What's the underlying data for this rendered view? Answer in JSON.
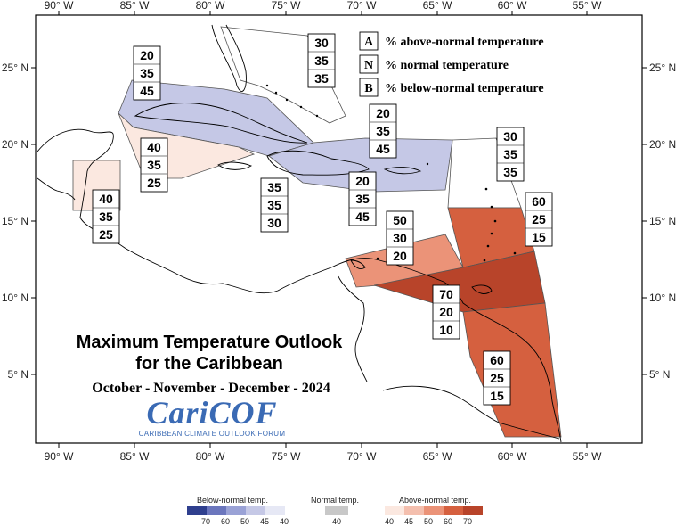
{
  "map_title": "Maximum Temperature Outlook",
  "map_title_line2": "for the Caribbean",
  "season": "October - November - December - 2024",
  "logo": {
    "main": "CariCOF",
    "sub": "CARIBBEAN CLIMATE OUTLOOK FORUM"
  },
  "key": [
    {
      "letter": "A",
      "text": "% above-normal temperature"
    },
    {
      "letter": "N",
      "text": "% normal temperature"
    },
    {
      "letter": "B",
      "text": "% below-normal temperature"
    }
  ],
  "lon_labels": [
    "90° W",
    "85° W",
    "80° W",
    "75° W",
    "70° W",
    "65° W",
    "60° W",
    "55° W"
  ],
  "lat_labels": [
    "25° N",
    "20° N",
    "15° N",
    "10° N",
    "5° N"
  ],
  "regions": [
    {
      "name": "bahamas",
      "values": [
        "30",
        "35",
        "35"
      ],
      "color": "#ffffff"
    },
    {
      "name": "cuba",
      "values": [
        "20",
        "35",
        "45"
      ],
      "color": "#c5c8e6"
    },
    {
      "name": "cayman",
      "values": [
        "40",
        "35",
        "25"
      ],
      "color": "#fbe8e0"
    },
    {
      "name": "belize",
      "values": [
        "40",
        "35",
        "25"
      ],
      "color": "#fbe8e0"
    },
    {
      "name": "jamaica",
      "values": [
        "35",
        "35",
        "30"
      ],
      "color": "#ffffff"
    },
    {
      "name": "hispaniola-pr",
      "values": [
        "20",
        "35",
        "45"
      ],
      "color": "#c5c8e6"
    },
    {
      "name": "hispaniola-south",
      "values": [
        "20",
        "35",
        "45"
      ],
      "color": "#c5c8e6"
    },
    {
      "name": "leewards",
      "values": [
        "30",
        "35",
        "35"
      ],
      "color": "#ffffff"
    },
    {
      "name": "windwards",
      "values": [
        "60",
        "25",
        "15"
      ],
      "color": "#d5603f"
    },
    {
      "name": "abc-islands",
      "values": [
        "50",
        "30",
        "20"
      ],
      "color": "#eb9378"
    },
    {
      "name": "trinidad",
      "values": [
        "70",
        "20",
        "10"
      ],
      "color": "#b8442a"
    },
    {
      "name": "guianas",
      "values": [
        "60",
        "25",
        "15"
      ],
      "color": "#d5603f"
    }
  ],
  "legend": {
    "below": {
      "title": "Below-normal temp.",
      "ticks": [
        "70",
        "60",
        "50",
        "45",
        "40"
      ],
      "colors": [
        "#2f3f8e",
        "#6b76bd",
        "#9aa2d6",
        "#c5c8e6",
        "#e6e8f5"
      ]
    },
    "normal": {
      "title": "Normal temp.",
      "ticks": [
        "40"
      ],
      "colors": [
        "#c8c8c8"
      ]
    },
    "above": {
      "title": "Above-normal temp.",
      "ticks": [
        "40",
        "45",
        "50",
        "60",
        "70"
      ],
      "colors": [
        "#fbe8e0",
        "#f4bfae",
        "#eb9378",
        "#d5603f",
        "#b8442a"
      ]
    }
  }
}
